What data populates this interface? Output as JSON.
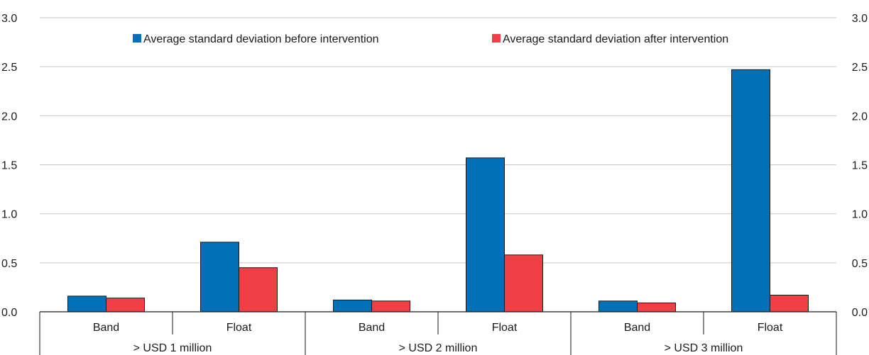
{
  "chart_data": {
    "type": "bar",
    "groups": [
      {
        "label": "> USD 1 million",
        "categories": [
          "Band",
          "Float"
        ]
      },
      {
        "label": "> USD 2 million",
        "categories": [
          "Band",
          "Float"
        ]
      },
      {
        "label": "> USD 3 million",
        "categories": [
          "Band",
          "Float"
        ]
      }
    ],
    "categories": [
      "Band",
      "Float",
      "Band",
      "Float",
      "Band",
      "Float"
    ],
    "series": [
      {
        "name": "Average standard deviation before intervention",
        "color": "#0070b8",
        "values": [
          0.16,
          0.71,
          0.12,
          1.57,
          0.11,
          2.47
        ]
      },
      {
        "name": "Average standard deviation after intervention",
        "color": "#ef4046",
        "values": [
          0.14,
          0.45,
          0.11,
          0.58,
          0.09,
          0.17
        ]
      }
    ],
    "ylim": [
      0,
      3.0
    ],
    "yticks": [
      "0.0",
      "0.5",
      "1.0",
      "1.5",
      "2.0",
      "2.5",
      "3.0"
    ],
    "grid": true,
    "legend_position": "top-center"
  }
}
